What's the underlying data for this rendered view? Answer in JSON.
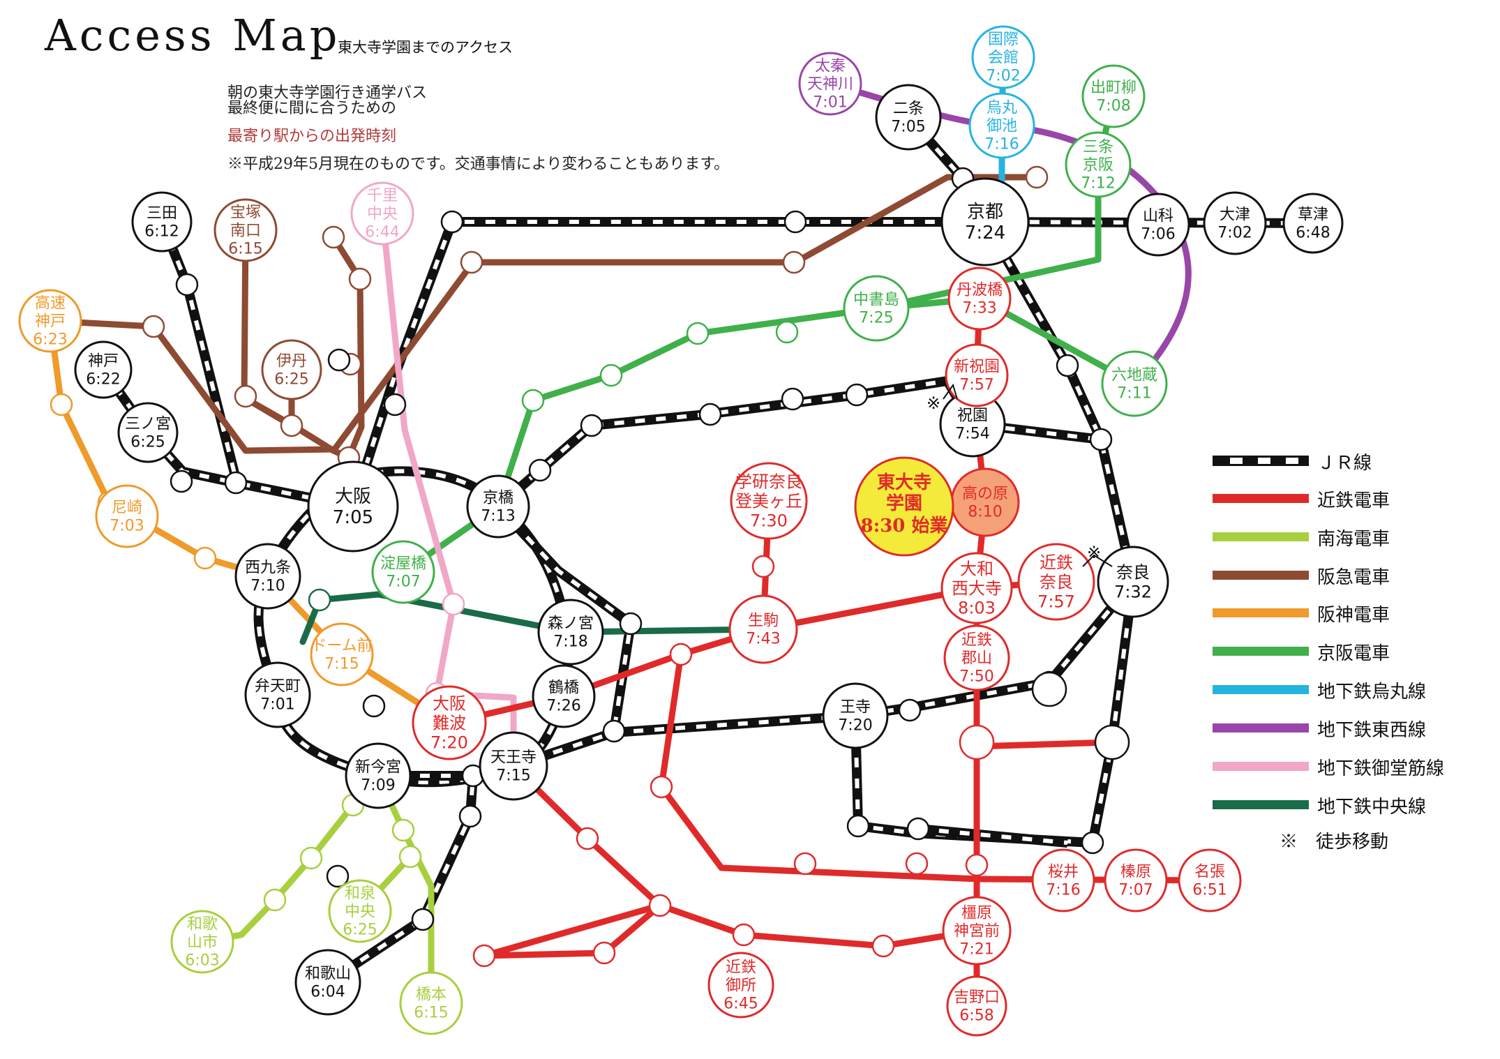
{
  "header": {
    "title": "Access  Map",
    "subtitle": "東大寺学園までのアクセス",
    "note_line1": "朝の東大寺学園行き通学バス",
    "note_line2": "最終便に間に合うための",
    "note_line3": "最寄り駅からの出発時刻",
    "note_line4": "※平成29年5月現在のものです。交通事情により変わることもあります。"
  },
  "colors": {
    "jr": "#111111",
    "kintetsu": "#e02a2a",
    "nankai": "#a8cf3e",
    "hankyu": "#8e4a32",
    "hanshin": "#ef9a2a",
    "keihan": "#3fb04a",
    "karasuma": "#26b3e0",
    "tozai": "#9846a8",
    "midosuji": "#f0a7c8",
    "chuo": "#1a6b48",
    "school_fill": "#f4ea3a",
    "school_text": "#e02a2a",
    "takanohara_fill": "#f5a177"
  },
  "legend": [
    {
      "key": "jr",
      "label": "ＪＲ線"
    },
    {
      "key": "kintetsu",
      "label": "近鉄電車"
    },
    {
      "key": "nankai",
      "label": "南海電車"
    },
    {
      "key": "hankyu",
      "label": "阪急電車"
    },
    {
      "key": "hanshin",
      "label": "阪神電車"
    },
    {
      "key": "keihan",
      "label": "京阪電車"
    },
    {
      "key": "karasuma",
      "label": "地下鉄烏丸線"
    },
    {
      "key": "tozai",
      "label": "地下鉄東西線"
    },
    {
      "key": "midosuji",
      "label": "地下鉄御堂筋線"
    },
    {
      "key": "chuo",
      "label": "地下鉄中央線"
    }
  ],
  "walk_note": "※　徒歩移動",
  "walk_mark": "※",
  "school": {
    "name1": "東大寺",
    "name2": "学園",
    "name3": "8:30 始業"
  },
  "stations": [
    {
      "id": "sanda",
      "line1": "三田",
      "line2": "6:12",
      "color": "jr"
    },
    {
      "id": "takarazuka",
      "line1": "宝塚",
      "line2": "南口",
      "line3": "6:15",
      "color": "hankyu"
    },
    {
      "id": "senri",
      "line1": "千里",
      "line2": "中央",
      "line3": "6:44",
      "color": "midosuji"
    },
    {
      "id": "kosoku",
      "line1": "高速",
      "line2": "神戸",
      "line3": "6:23",
      "color": "hanshin"
    },
    {
      "id": "kobe",
      "line1": "神戸",
      "line2": "6:22",
      "color": "jr"
    },
    {
      "id": "sannomiya",
      "line1": "三ノ宮",
      "line2": "6:25",
      "color": "jr"
    },
    {
      "id": "itami",
      "line1": "伊丹",
      "line2": "6:25",
      "color": "hankyu"
    },
    {
      "id": "amagasaki",
      "line1": "尼崎",
      "line2": "7:03",
      "color": "hanshin"
    },
    {
      "id": "osaka",
      "line1": "大阪",
      "line2": "7:05",
      "color": "jr"
    },
    {
      "id": "kyobashi",
      "line1": "京橋",
      "line2": "7:13",
      "color": "jr"
    },
    {
      "id": "yodoyabashi",
      "line1": "淀屋橋",
      "line2": "7:07",
      "color": "keihan"
    },
    {
      "id": "nishikujo",
      "line1": "西九条",
      "line2": "7:10",
      "color": "jr"
    },
    {
      "id": "domemae",
      "line1": "ドーム前",
      "line2": "7:15",
      "color": "hanshin"
    },
    {
      "id": "bentencho",
      "line1": "弁天町",
      "line2": "7:01",
      "color": "jr"
    },
    {
      "id": "morinomiya",
      "line1": "森ノ宮",
      "line2": "7:18",
      "color": "jr"
    },
    {
      "id": "osakanamba",
      "line1": "大阪",
      "line2": "難波",
      "line3": "7:20",
      "color": "kintetsu"
    },
    {
      "id": "tsuruhashi",
      "line1": "鶴橋",
      "line2": "7:26",
      "color": "jr"
    },
    {
      "id": "shinimamiya",
      "line1": "新今宮",
      "line2": "7:09",
      "color": "jr"
    },
    {
      "id": "tennoji",
      "line1": "天王寺",
      "line2": "7:15",
      "color": "jr"
    },
    {
      "id": "izumichuo",
      "line1": "和泉",
      "line2": "中央",
      "line3": "6:25",
      "color": "nankai"
    },
    {
      "id": "wakayamashi",
      "line1": "和歌",
      "line2": "山市",
      "line3": "6:03",
      "color": "nankai"
    },
    {
      "id": "wakayama",
      "line1": "和歌山",
      "line2": "6:04",
      "color": "jr"
    },
    {
      "id": "hashimoto",
      "line1": "橋本",
      "line2": "6:15",
      "color": "nankai"
    },
    {
      "id": "gakkennara",
      "line1": "学研奈良",
      "line2": "登美ヶ丘",
      "line3": "7:30",
      "color": "kintetsu"
    },
    {
      "id": "ikoma",
      "line1": "生駒",
      "line2": "7:43",
      "color": "kintetsu"
    },
    {
      "id": "oji",
      "line1": "王寺",
      "line2": "7:20",
      "color": "jr"
    },
    {
      "id": "kintetsugose",
      "line1": "近鉄",
      "line2": "御所",
      "line3": "6:45",
      "color": "kintetsu"
    },
    {
      "id": "kashiharajingu",
      "line1": "橿原",
      "line2": "神宮前",
      "line3": "7:21",
      "color": "kintetsu"
    },
    {
      "id": "yoshinoguchi",
      "line1": "吉野口",
      "line2": "6:58",
      "color": "kintetsu"
    },
    {
      "id": "sakurai",
      "line1": "桜井",
      "line2": "7:16",
      "color": "kintetsu"
    },
    {
      "id": "haibara",
      "line1": "榛原",
      "line2": "7:07",
      "color": "kintetsu"
    },
    {
      "id": "nabari",
      "line1": "名張",
      "line2": "6:51",
      "color": "kintetsu"
    },
    {
      "id": "yamatosaidaiji",
      "line1": "大和",
      "line2": "西大寺",
      "line3": "8:03",
      "color": "kintetsu"
    },
    {
      "id": "kintetsukoriyama",
      "line1": "近鉄",
      "line2": "郡山",
      "line3": "7:50",
      "color": "kintetsu"
    },
    {
      "id": "kintetsunara",
      "line1": "近鉄",
      "line2": "奈良",
      "line3": "7:57",
      "color": "kintetsu"
    },
    {
      "id": "nara",
      "line1": "奈良",
      "line2": "7:32",
      "color": "jr"
    },
    {
      "id": "takanohara",
      "line1": "高の原",
      "line2": "8:10",
      "color": "kintetsu"
    },
    {
      "id": "hosono",
      "line1": "祝園",
      "line2": "7:54",
      "color": "jr"
    },
    {
      "id": "shinhosono",
      "line1": "新祝園",
      "line2": "7:57",
      "color": "kintetsu"
    },
    {
      "id": "tambabashi",
      "line1": "丹波橋",
      "line2": "7:33",
      "color": "kintetsu"
    },
    {
      "id": "nakashojima",
      "line1": "中書島",
      "line2": "7:25",
      "color": "keihan"
    },
    {
      "id": "rokujizo",
      "line1": "六地蔵",
      "line2": "7:11",
      "color": "keihan"
    },
    {
      "id": "kyoto",
      "line1": "京都",
      "line2": "7:24",
      "color": "jr"
    },
    {
      "id": "yamashina",
      "line1": "山科",
      "line2": "7:06",
      "color": "jr"
    },
    {
      "id": "otsu",
      "line1": "大津",
      "line2": "7:02",
      "color": "jr"
    },
    {
      "id": "kusatsu",
      "line1": "草津",
      "line2": "6:48",
      "color": "jr"
    },
    {
      "id": "nijo",
      "line1": "二条",
      "line2": "7:05",
      "color": "jr"
    },
    {
      "id": "uzumasa",
      "line1": "太秦",
      "line2": "天神川",
      "line3": "7:01",
      "color": "tozai"
    },
    {
      "id": "kokusai",
      "line1": "国際",
      "line2": "会館",
      "line3": "7:02",
      "color": "karasuma"
    },
    {
      "id": "karasumaoike",
      "line1": "烏丸",
      "line2": "御池",
      "line3": "7:16",
      "color": "karasuma"
    },
    {
      "id": "demachiyanagi",
      "line1": "出町柳",
      "line2": "7:08",
      "color": "keihan"
    },
    {
      "id": "sanjokeihan",
      "line1": "三条",
      "line2": "京阪",
      "line3": "7:12",
      "color": "keihan"
    }
  ]
}
